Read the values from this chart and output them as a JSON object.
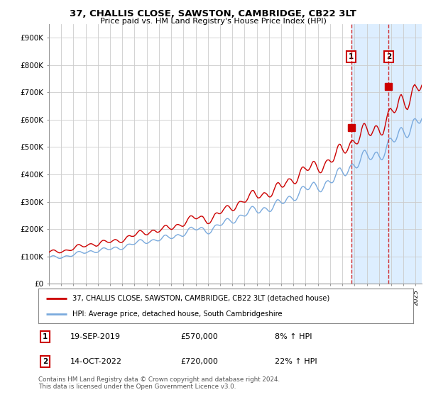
{
  "title": "37, CHALLIS CLOSE, SAWSTON, CAMBRIDGE, CB22 3LT",
  "subtitle": "Price paid vs. HM Land Registry's House Price Index (HPI)",
  "legend_line1": "37, CHALLIS CLOSE, SAWSTON, CAMBRIDGE, CB22 3LT (detached house)",
  "legend_line2": "HPI: Average price, detached house, South Cambridgeshire",
  "footer": "Contains HM Land Registry data © Crown copyright and database right 2024.\nThis data is licensed under the Open Government Licence v3.0.",
  "transaction1_date": "19-SEP-2019",
  "transaction1_price": "£570,000",
  "transaction1_hpi": "8% ↑ HPI",
  "transaction1_year": 2019.72,
  "transaction1_value": 570000,
  "transaction2_date": "14-OCT-2022",
  "transaction2_price": "£720,000",
  "transaction2_hpi": "22% ↑ HPI",
  "transaction2_year": 2022.79,
  "transaction2_value": 720000,
  "red_color": "#cc0000",
  "blue_color": "#7aaadd",
  "shade_color": "#ddeeff",
  "background_color": "#ffffff",
  "grid_color": "#cccccc",
  "ylim": [
    0,
    950000
  ],
  "yticks": [
    0,
    100000,
    200000,
    300000,
    400000,
    500000,
    600000,
    700000,
    800000,
    900000
  ],
  "ytick_labels": [
    "£0",
    "£100K",
    "£200K",
    "£300K",
    "£400K",
    "£500K",
    "£600K",
    "£700K",
    "£800K",
    "£900K"
  ],
  "xlim_start": 1995.0,
  "xlim_end": 2025.5
}
